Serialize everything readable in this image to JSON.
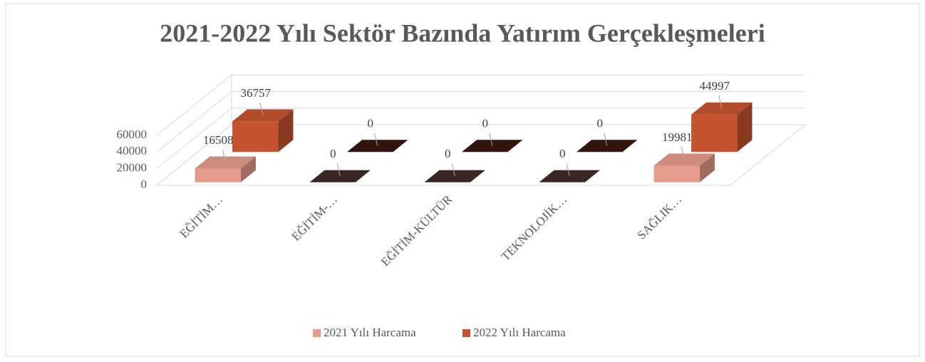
{
  "chart_data": {
    "type": "bar3d",
    "title": "2021-2022 Yılı Sektör Bazında Yatırım Gerçekleşmeleri",
    "categories": [
      "EĞİTİM…",
      "EĞİTİM-…",
      "EĞİTİM-KÜLTÜR",
      "TEKNOLOJİK…",
      "SAĞLIK…"
    ],
    "series": [
      {
        "name": "2021 Yılı Harcama",
        "color": "#e59c8c",
        "values": [
          16508,
          0,
          0,
          0,
          19981
        ]
      },
      {
        "name": "2022 Yılı Harcama",
        "color": "#c5532f",
        "values": [
          36757,
          0,
          0,
          0,
          44997
        ]
      }
    ],
    "ylim": [
      0,
      60000
    ],
    "yticks": [
      0,
      20000,
      40000,
      60000
    ],
    "grid": true,
    "legend": "bottom"
  }
}
